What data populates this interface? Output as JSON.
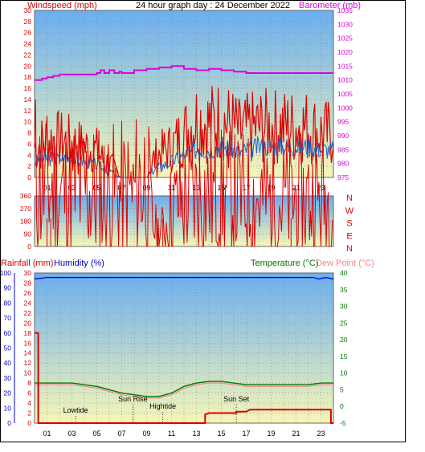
{
  "title": "24 hour graph day : 24 December 2022",
  "colors": {
    "wind": "#dd0000",
    "wind_avg": "#1a66cc",
    "baro": "#dd00dd",
    "dir": "#dd0000",
    "rain": "#dd0000",
    "humidity": "#0000cc",
    "temperature": "#007700",
    "dewpoint": "#ee8888",
    "sky_top": "#6aaef0",
    "sky_bottom": "#f6f6b8"
  },
  "chart_data": [
    {
      "type": "line",
      "name": "wind-baro",
      "ylabel_left": "Windspeed (mph)",
      "ylabel_right": "Barometer (mb)",
      "ylim_left": [
        0,
        30
      ],
      "yticks_left": [
        "0",
        "2",
        "4",
        "6",
        "8",
        "10",
        "12",
        "14",
        "16",
        "18",
        "20",
        "22",
        "24",
        "26",
        "28",
        "30"
      ],
      "ylim_right": [
        975,
        1035
      ],
      "yticks_right": [
        "975",
        "980",
        "985",
        "990",
        "995",
        "1000",
        "1005",
        "1010",
        "1015",
        "1020",
        "1025",
        "1030",
        "1035"
      ],
      "xlim": [
        0,
        24
      ],
      "xticks": [
        "01",
        "03",
        "05",
        "07",
        "09",
        "11",
        "13",
        "15",
        "17",
        "19",
        "21",
        "23"
      ],
      "series": [
        {
          "key": "gust",
          "x": [
            0,
            1,
            2,
            3,
            4,
            5,
            5.5,
            6,
            6.5,
            7,
            8,
            9,
            9.5,
            10,
            11,
            11.5,
            12,
            13,
            14,
            15,
            16,
            16.5,
            17,
            18,
            19,
            20,
            21,
            22,
            23,
            24
          ],
          "values": [
            4,
            5,
            5,
            4.5,
            4,
            3.5,
            2,
            1.5,
            0.5,
            0,
            0,
            0,
            2,
            3,
            4,
            5,
            6,
            8,
            7.5,
            8,
            7,
            6,
            6.5,
            7,
            7,
            7,
            7,
            7,
            6,
            6
          ]
        },
        {
          "key": "average",
          "x": [
            0,
            1,
            2,
            3,
            4,
            5,
            5.5,
            6,
            6.5,
            7,
            8,
            9,
            9.5,
            10,
            11,
            11.5,
            12,
            13,
            14,
            15,
            16,
            16.5,
            17,
            18,
            19,
            20,
            21,
            22,
            23,
            24
          ],
          "values": [
            2.5,
            3,
            3,
            3,
            2.5,
            2,
            1.2,
            1,
            0.3,
            0,
            0,
            0,
            1,
            1.5,
            2.5,
            3,
            3.5,
            4.5,
            4.5,
            5,
            4.5,
            4,
            4.5,
            5,
            5,
            5,
            5,
            5,
            4.5,
            4.5
          ]
        },
        {
          "key": "barometer",
          "x": [
            0,
            0.6,
            1,
            1.5,
            2,
            3,
            4,
            5,
            5.3,
            5.6,
            6,
            6.4,
            6.8,
            7,
            8,
            9,
            10,
            11,
            12,
            13,
            14,
            15,
            16,
            17,
            18,
            19,
            20,
            21,
            22,
            23,
            24
          ],
          "values": [
            1010,
            1010.5,
            1011,
            1011.5,
            1012,
            1012,
            1012,
            1012.5,
            1013.5,
            1012.5,
            1013.5,
            1012.5,
            1013,
            1012.5,
            1013.5,
            1014,
            1014.5,
            1015,
            1014,
            1013.5,
            1014,
            1013.5,
            1013,
            1012.5,
            1012.5,
            1012.5,
            1012.5,
            1012.5,
            1012.5,
            1012.5,
            1012.5
          ]
        }
      ]
    },
    {
      "type": "line",
      "name": "wind-direction",
      "ylim": [
        0,
        360
      ],
      "yticks": [
        "0",
        "90",
        "180",
        "270",
        "360"
      ],
      "compass_labels": [
        "N",
        "W",
        "S",
        "E",
        "N"
      ],
      "x": [
        0,
        0.5,
        1,
        1.5,
        2,
        3,
        4,
        5,
        6,
        7,
        8,
        8.5,
        9,
        9.5,
        10,
        10.5,
        11,
        12,
        13,
        14,
        15,
        16,
        17,
        18,
        19,
        20,
        21,
        22,
        23,
        24
      ],
      "values": [
        280,
        250,
        230,
        240,
        210,
        220,
        230,
        210,
        210,
        210,
        210,
        270,
        270,
        80,
        60,
        80,
        150,
        190,
        200,
        205,
        200,
        195,
        195,
        190,
        190,
        185,
        190,
        190,
        185,
        190
      ]
    },
    {
      "type": "line",
      "name": "rain-humidity-temp",
      "ylabel_rain": "Rainfall (mm)",
      "ylabel_humidity": "Humidity (%)",
      "ylabel_temp": "Temperature (°C)",
      "ylabel_dew": "Dew Point (°C)",
      "ylim_rain": [
        0,
        30
      ],
      "yticks_rain": [
        "0",
        "2",
        "4",
        "6",
        "8",
        "10",
        "12",
        "14",
        "16",
        "18",
        "20",
        "22",
        "24",
        "26",
        "28",
        "30"
      ],
      "ylim_humidity": [
        0,
        100
      ],
      "yticks_humidity": [
        "0",
        "10",
        "20",
        "30",
        "40",
        "50",
        "60",
        "70",
        "80",
        "90",
        "100"
      ],
      "ylim_temp": [
        -5,
        40
      ],
      "yticks_temp": [
        "-5",
        "0",
        "5",
        "10",
        "15",
        "20",
        "25",
        "30",
        "35",
        "40"
      ],
      "xlim": [
        0,
        24
      ],
      "xticks": [
        "01",
        "03",
        "05",
        "07",
        "09",
        "11",
        "13",
        "15",
        "17",
        "19",
        "21",
        "23"
      ],
      "annotations": [
        {
          "label": "Lowtide",
          "x": 3.3
        },
        {
          "label": "Sun Rise",
          "x": 7.9
        },
        {
          "label": "Hightide",
          "x": 10.3
        },
        {
          "label": "Sun Set",
          "x": 16.2
        }
      ],
      "series": [
        {
          "key": "rain",
          "x": [
            0,
            0.3,
            0.3,
            13.7,
            13.7,
            14,
            14.2,
            16.2,
            16.2,
            17,
            17.3,
            23.8,
            23.8,
            24
          ],
          "values": [
            18,
            18,
            0,
            0,
            1.7,
            2,
            2,
            2,
            2.3,
            2.3,
            2.7,
            2.7,
            0,
            0
          ]
        },
        {
          "key": "humidity",
          "x": [
            0,
            1,
            3,
            5,
            7,
            9,
            11,
            13,
            15,
            17,
            19,
            21,
            22.4,
            22.8,
            23.4,
            24
          ],
          "values": [
            96,
            97,
            97,
            97,
            97,
            97,
            97,
            97,
            97,
            97,
            97,
            97,
            97,
            96,
            97,
            96
          ]
        },
        {
          "key": "temperature",
          "x": [
            0,
            1,
            2,
            3,
            4,
            5,
            6,
            7,
            8,
            9,
            10,
            11,
            12,
            13,
            14,
            15,
            16,
            17,
            18,
            19,
            20,
            21,
            22,
            23,
            24
          ],
          "values": [
            7,
            7,
            7,
            7,
            6.5,
            6,
            5,
            4,
            3.5,
            3,
            3,
            4,
            6,
            7,
            7.5,
            7.5,
            7,
            6.5,
            6.5,
            6.5,
            6.5,
            6.5,
            6.5,
            7,
            7
          ]
        },
        {
          "key": "dewpoint",
          "x": [
            0,
            1,
            2,
            3,
            4,
            5,
            6,
            7,
            8,
            9,
            10,
            11,
            12,
            13,
            14,
            15,
            16,
            17,
            18,
            19,
            20,
            21,
            22,
            23,
            24
          ],
          "values": [
            6.5,
            6.5,
            6.5,
            6.5,
            6,
            5.5,
            4.5,
            3.5,
            3,
            2.5,
            2.5,
            3.5,
            5.5,
            6.5,
            7,
            7,
            6.5,
            6,
            6,
            6,
            6,
            6,
            6,
            6.5,
            6.5
          ]
        }
      ]
    }
  ]
}
